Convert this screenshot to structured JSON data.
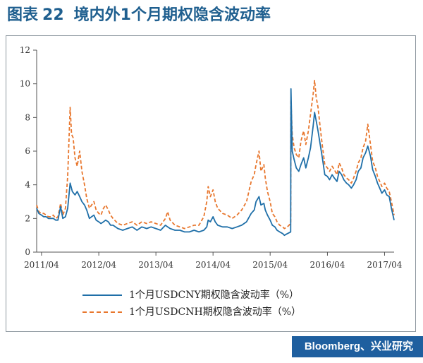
{
  "figure": {
    "label": "图表",
    "number": "22",
    "title": "境内外1个月期权隐含波动率"
  },
  "source": "Bloomberg、兴业研究",
  "chart_data": {
    "type": "line",
    "title": "境内外1个月期权隐含波动率",
    "xlabel": "",
    "ylabel": "",
    "ylim": [
      0,
      12
    ],
    "y_ticks": [
      "0",
      "2",
      "4",
      "6",
      "8",
      "10",
      "12"
    ],
    "x_ticks": [
      "2011/04",
      "2012/04",
      "2013/04",
      "2014/04",
      "2015/04",
      "2016/04",
      "2017/04"
    ],
    "x_range": [
      "2011-03",
      "2017-06"
    ],
    "grid": false,
    "legend_position": "bottom",
    "colors": {
      "CNY": "#1f6fa8",
      "CNH": "#e8772e"
    },
    "series": [
      {
        "name": "1个月USDCNY期权隐含波动率（%）",
        "style": "solid",
        "points": [
          [
            "2011-03-01",
            2.6
          ],
          [
            "2011-03-15",
            2.3
          ],
          [
            "2011-04-01",
            2.2
          ],
          [
            "2011-04-15",
            2.1
          ],
          [
            "2011-05-01",
            2.1
          ],
          [
            "2011-05-15",
            2.0
          ],
          [
            "2011-06-01",
            2.0
          ],
          [
            "2011-06-15",
            2.0
          ],
          [
            "2011-07-01",
            1.9
          ],
          [
            "2011-07-15",
            1.9
          ],
          [
            "2011-08-01",
            2.7
          ],
          [
            "2011-08-15",
            2.0
          ],
          [
            "2011-09-01",
            2.1
          ],
          [
            "2011-09-15",
            2.6
          ],
          [
            "2011-10-01",
            4.1
          ],
          [
            "2011-10-15",
            3.6
          ],
          [
            "2011-11-01",
            3.4
          ],
          [
            "2011-11-15",
            3.6
          ],
          [
            "2011-12-01",
            3.3
          ],
          [
            "2011-12-15",
            3.0
          ],
          [
            "2012-01-01",
            2.8
          ],
          [
            "2012-01-15",
            2.5
          ],
          [
            "2012-02-01",
            2.0
          ],
          [
            "2012-02-15",
            2.1
          ],
          [
            "2012-03-01",
            2.2
          ],
          [
            "2012-03-15",
            1.9
          ],
          [
            "2012-04-01",
            1.8
          ],
          [
            "2012-04-15",
            1.7
          ],
          [
            "2012-05-01",
            1.8
          ],
          [
            "2012-05-15",
            1.9
          ],
          [
            "2012-06-01",
            1.8
          ],
          [
            "2012-06-15",
            1.6
          ],
          [
            "2012-07-01",
            1.6
          ],
          [
            "2012-08-01",
            1.4
          ],
          [
            "2012-09-01",
            1.3
          ],
          [
            "2012-10-01",
            1.4
          ],
          [
            "2012-11-01",
            1.5
          ],
          [
            "2012-12-01",
            1.3
          ],
          [
            "2013-01-01",
            1.5
          ],
          [
            "2013-02-01",
            1.4
          ],
          [
            "2013-03-01",
            1.5
          ],
          [
            "2013-04-01",
            1.4
          ],
          [
            "2013-05-01",
            1.3
          ],
          [
            "2013-06-01",
            1.6
          ],
          [
            "2013-06-15",
            1.5
          ],
          [
            "2013-07-01",
            1.4
          ],
          [
            "2013-08-01",
            1.3
          ],
          [
            "2013-09-01",
            1.3
          ],
          [
            "2013-10-01",
            1.2
          ],
          [
            "2013-11-01",
            1.2
          ],
          [
            "2013-12-01",
            1.3
          ],
          [
            "2014-01-01",
            1.2
          ],
          [
            "2014-02-01",
            1.3
          ],
          [
            "2014-02-20",
            1.5
          ],
          [
            "2014-03-01",
            1.9
          ],
          [
            "2014-03-15",
            1.8
          ],
          [
            "2014-04-01",
            2.1
          ],
          [
            "2014-04-15",
            1.8
          ],
          [
            "2014-05-01",
            1.6
          ],
          [
            "2014-06-01",
            1.5
          ],
          [
            "2014-07-01",
            1.5
          ],
          [
            "2014-08-01",
            1.4
          ],
          [
            "2014-09-01",
            1.5
          ],
          [
            "2014-10-01",
            1.6
          ],
          [
            "2014-11-01",
            1.8
          ],
          [
            "2014-12-01",
            2.3
          ],
          [
            "2014-12-20",
            2.5
          ],
          [
            "2015-01-01",
            3.0
          ],
          [
            "2015-01-20",
            3.3
          ],
          [
            "2015-02-01",
            2.8
          ],
          [
            "2015-02-20",
            2.9
          ],
          [
            "2015-03-01",
            2.5
          ],
          [
            "2015-03-15",
            2.2
          ],
          [
            "2015-04-01",
            1.9
          ],
          [
            "2015-04-15",
            1.6
          ],
          [
            "2015-05-01",
            1.5
          ],
          [
            "2015-05-15",
            1.3
          ],
          [
            "2015-06-01",
            1.2
          ],
          [
            "2015-06-20",
            1.1
          ],
          [
            "2015-07-01",
            1.0
          ],
          [
            "2015-07-20",
            1.1
          ],
          [
            "2015-08-10",
            1.2
          ],
          [
            "2015-08-12",
            9.7
          ],
          [
            "2015-08-20",
            6.0
          ],
          [
            "2015-09-01",
            5.5
          ],
          [
            "2015-09-15",
            5.0
          ],
          [
            "2015-10-01",
            4.8
          ],
          [
            "2015-10-15",
            5.2
          ],
          [
            "2015-11-01",
            5.6
          ],
          [
            "2015-11-15",
            5.0
          ],
          [
            "2015-12-01",
            5.6
          ],
          [
            "2015-12-15",
            6.2
          ],
          [
            "2016-01-01",
            7.5
          ],
          [
            "2016-01-10",
            8.3
          ],
          [
            "2016-01-20",
            7.8
          ],
          [
            "2016-02-01",
            7.2
          ],
          [
            "2016-02-15",
            6.4
          ],
          [
            "2016-03-01",
            5.5
          ],
          [
            "2016-03-15",
            4.6
          ],
          [
            "2016-04-01",
            4.5
          ],
          [
            "2016-04-15",
            4.3
          ],
          [
            "2016-05-01",
            4.6
          ],
          [
            "2016-05-15",
            4.4
          ],
          [
            "2016-06-01",
            4.2
          ],
          [
            "2016-06-15",
            4.8
          ],
          [
            "2016-07-01",
            4.6
          ],
          [
            "2016-07-15",
            4.3
          ],
          [
            "2016-08-01",
            4.1
          ],
          [
            "2016-08-15",
            4.0
          ],
          [
            "2016-09-01",
            3.8
          ],
          [
            "2016-09-15",
            4.0
          ],
          [
            "2016-10-01",
            4.3
          ],
          [
            "2016-10-15",
            4.8
          ],
          [
            "2016-11-01",
            5.0
          ],
          [
            "2016-11-15",
            5.6
          ],
          [
            "2016-12-01",
            5.9
          ],
          [
            "2016-12-15",
            6.3
          ],
          [
            "2017-01-01",
            5.7
          ],
          [
            "2017-01-15",
            4.9
          ],
          [
            "2017-02-01",
            4.5
          ],
          [
            "2017-02-15",
            4.1
          ],
          [
            "2017-03-01",
            3.8
          ],
          [
            "2017-03-15",
            3.5
          ],
          [
            "2017-04-01",
            3.7
          ],
          [
            "2017-04-15",
            3.4
          ],
          [
            "2017-05-01",
            3.3
          ],
          [
            "2017-05-15",
            2.6
          ],
          [
            "2017-06-01",
            1.9
          ]
        ]
      },
      {
        "name": "1个月USDCNH期权隐含波动率（%）",
        "style": "dashed",
        "points": [
          [
            "2011-03-01",
            2.8
          ],
          [
            "2011-03-15",
            2.4
          ],
          [
            "2011-04-01",
            2.3
          ],
          [
            "2011-04-15",
            2.3
          ],
          [
            "2011-05-01",
            2.2
          ],
          [
            "2011-05-15",
            2.1
          ],
          [
            "2011-06-01",
            2.1
          ],
          [
            "2011-06-15",
            2.2
          ],
          [
            "2011-07-01",
            2.0
          ],
          [
            "2011-07-15",
            2.1
          ],
          [
            "2011-08-01",
            2.9
          ],
          [
            "2011-08-15",
            2.2
          ],
          [
            "2011-09-01",
            2.6
          ],
          [
            "2011-09-15",
            4.5
          ],
          [
            "2011-10-01",
            8.6
          ],
          [
            "2011-10-10",
            7.0
          ],
          [
            "2011-10-20",
            6.8
          ],
          [
            "2011-11-01",
            5.6
          ],
          [
            "2011-11-15",
            5.1
          ],
          [
            "2011-12-01",
            6.0
          ],
          [
            "2011-12-15",
            4.8
          ],
          [
            "2012-01-01",
            4.0
          ],
          [
            "2012-01-15",
            3.2
          ],
          [
            "2012-02-01",
            2.6
          ],
          [
            "2012-02-15",
            2.8
          ],
          [
            "2012-03-01",
            3.0
          ],
          [
            "2012-03-15",
            2.5
          ],
          [
            "2012-04-01",
            2.3
          ],
          [
            "2012-04-15",
            2.2
          ],
          [
            "2012-05-01",
            2.6
          ],
          [
            "2012-05-15",
            2.8
          ],
          [
            "2012-06-01",
            2.5
          ],
          [
            "2012-06-15",
            2.2
          ],
          [
            "2012-07-01",
            2.0
          ],
          [
            "2012-08-01",
            1.7
          ],
          [
            "2012-09-01",
            1.6
          ],
          [
            "2012-10-01",
            1.7
          ],
          [
            "2012-11-01",
            1.8
          ],
          [
            "2012-12-01",
            1.6
          ],
          [
            "2013-01-01",
            1.8
          ],
          [
            "2013-02-01",
            1.7
          ],
          [
            "2013-03-01",
            1.8
          ],
          [
            "2013-04-01",
            1.7
          ],
          [
            "2013-05-01",
            1.6
          ],
          [
            "2013-06-01",
            2.0
          ],
          [
            "2013-06-15",
            2.4
          ],
          [
            "2013-07-01",
            1.9
          ],
          [
            "2013-08-01",
            1.6
          ],
          [
            "2013-09-01",
            1.5
          ],
          [
            "2013-10-01",
            1.4
          ],
          [
            "2013-11-01",
            1.5
          ],
          [
            "2013-12-01",
            1.6
          ],
          [
            "2014-01-01",
            1.6
          ],
          [
            "2014-02-01",
            2.1
          ],
          [
            "2014-02-20",
            3.0
          ],
          [
            "2014-03-01",
            3.9
          ],
          [
            "2014-03-15",
            3.3
          ],
          [
            "2014-04-01",
            3.7
          ],
          [
            "2014-04-15",
            3.0
          ],
          [
            "2014-05-01",
            2.6
          ],
          [
            "2014-06-01",
            2.3
          ],
          [
            "2014-07-01",
            2.2
          ],
          [
            "2014-08-01",
            2.0
          ],
          [
            "2014-09-01",
            2.2
          ],
          [
            "2014-10-01",
            2.5
          ],
          [
            "2014-11-01",
            3.0
          ],
          [
            "2014-12-01",
            4.2
          ],
          [
            "2014-12-20",
            4.6
          ],
          [
            "2015-01-01",
            5.2
          ],
          [
            "2015-01-20",
            6.0
          ],
          [
            "2015-02-01",
            4.8
          ],
          [
            "2015-02-20",
            5.2
          ],
          [
            "2015-03-01",
            4.4
          ],
          [
            "2015-03-15",
            3.6
          ],
          [
            "2015-04-01",
            3.0
          ],
          [
            "2015-04-15",
            2.3
          ],
          [
            "2015-05-01",
            2.1
          ],
          [
            "2015-05-15",
            1.8
          ],
          [
            "2015-06-01",
            1.6
          ],
          [
            "2015-06-20",
            1.5
          ],
          [
            "2015-07-01",
            1.4
          ],
          [
            "2015-07-20",
            1.5
          ],
          [
            "2015-08-10",
            1.7
          ],
          [
            "2015-08-12",
            9.0
          ],
          [
            "2015-08-20",
            7.0
          ],
          [
            "2015-09-01",
            6.2
          ],
          [
            "2015-09-15",
            5.8
          ],
          [
            "2015-10-01",
            5.6
          ],
          [
            "2015-10-15",
            6.6
          ],
          [
            "2015-11-01",
            7.2
          ],
          [
            "2015-11-15",
            6.4
          ],
          [
            "2015-12-01",
            7.2
          ],
          [
            "2015-12-15",
            8.2
          ],
          [
            "2016-01-01",
            9.4
          ],
          [
            "2016-01-10",
            10.2
          ],
          [
            "2016-01-20",
            9.2
          ],
          [
            "2016-02-01",
            8.6
          ],
          [
            "2016-02-15",
            7.4
          ],
          [
            "2016-03-01",
            6.2
          ],
          [
            "2016-03-15",
            5.2
          ],
          [
            "2016-04-01",
            5.0
          ],
          [
            "2016-04-15",
            4.8
          ],
          [
            "2016-05-01",
            5.1
          ],
          [
            "2016-05-15",
            4.9
          ],
          [
            "2016-06-01",
            4.6
          ],
          [
            "2016-06-15",
            5.3
          ],
          [
            "2016-07-01",
            5.0
          ],
          [
            "2016-07-15",
            4.6
          ],
          [
            "2016-08-01",
            4.4
          ],
          [
            "2016-08-15",
            4.3
          ],
          [
            "2016-09-01",
            4.1
          ],
          [
            "2016-09-15",
            4.4
          ],
          [
            "2016-10-01",
            4.8
          ],
          [
            "2016-10-15",
            5.3
          ],
          [
            "2016-11-01",
            5.6
          ],
          [
            "2016-11-15",
            6.2
          ],
          [
            "2016-12-01",
            6.6
          ],
          [
            "2016-12-15",
            7.6
          ],
          [
            "2017-01-01",
            6.4
          ],
          [
            "2017-01-15",
            5.4
          ],
          [
            "2017-02-01",
            5.0
          ],
          [
            "2017-02-15",
            4.5
          ],
          [
            "2017-03-01",
            4.2
          ],
          [
            "2017-03-15",
            3.9
          ],
          [
            "2017-04-01",
            4.1
          ],
          [
            "2017-04-15",
            3.8
          ],
          [
            "2017-05-01",
            3.6
          ],
          [
            "2017-05-15",
            3.0
          ],
          [
            "2017-06-01",
            2.2
          ]
        ]
      }
    ]
  }
}
